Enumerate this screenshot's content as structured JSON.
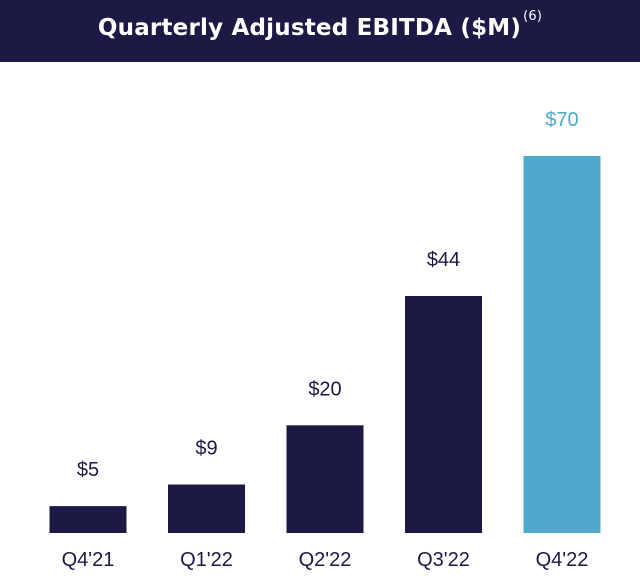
{
  "chart_data": {
    "type": "bar",
    "title": "Quarterly Adjusted EBITDA ($M)",
    "title_footnote": "(6)",
    "categories": [
      "Q4'21",
      "Q1'22",
      "Q2'22",
      "Q3'22",
      "Q4'22"
    ],
    "values": [
      5,
      9,
      20,
      44,
      70
    ],
    "value_labels": [
      "$5",
      "$9",
      "$20",
      "$44",
      "$70"
    ],
    "bar_colors": [
      "#1c1a45",
      "#1c1a45",
      "#1c1a45",
      "#1c1a45",
      "#4fa9cc"
    ],
    "label_colors": [
      "#1c1a45",
      "#1c1a45",
      "#1c1a45",
      "#1c1a45",
      "#4fa9cc"
    ],
    "ylim": [
      0,
      70
    ],
    "grid": false,
    "legend": "none"
  },
  "colors": {
    "banner_bg": "#1c1a45",
    "banner_text": "#ffffff",
    "dark_bar": "#1c1a45",
    "highlight_bar": "#4fa9cc"
  }
}
